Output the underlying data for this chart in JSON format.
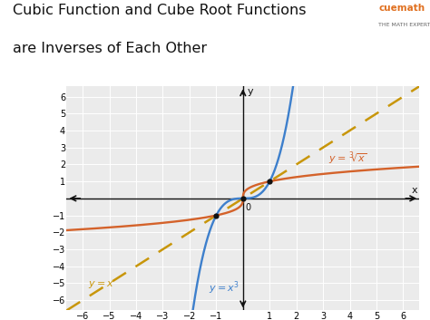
{
  "title_line1": "Cubic Function and Cube Root Functions",
  "title_line2": "are Inverses of Each Other",
  "title_fontsize": 11.5,
  "bg_color": "#ffffff",
  "plot_bg_color": "#ebebeb",
  "grid_color": "#ffffff",
  "axis_color": "#111111",
  "xlim": [
    -6.6,
    6.6
  ],
  "ylim": [
    -6.6,
    6.6
  ],
  "xticks": [
    -6,
    -5,
    -4,
    -3,
    -2,
    -1,
    0,
    1,
    2,
    3,
    4,
    5,
    6
  ],
  "yticks": [
    -6,
    -5,
    -4,
    -3,
    -2,
    -1,
    0,
    1,
    2,
    3,
    4,
    5,
    6
  ],
  "cubic_color": "#3d7fcc",
  "cbrt_color": "#d4622a",
  "identity_color": "#c8960a",
  "dot_color": "#111111",
  "dot_points": [
    [
      0,
      0
    ],
    [
      1,
      1
    ],
    [
      -1,
      -1
    ]
  ]
}
